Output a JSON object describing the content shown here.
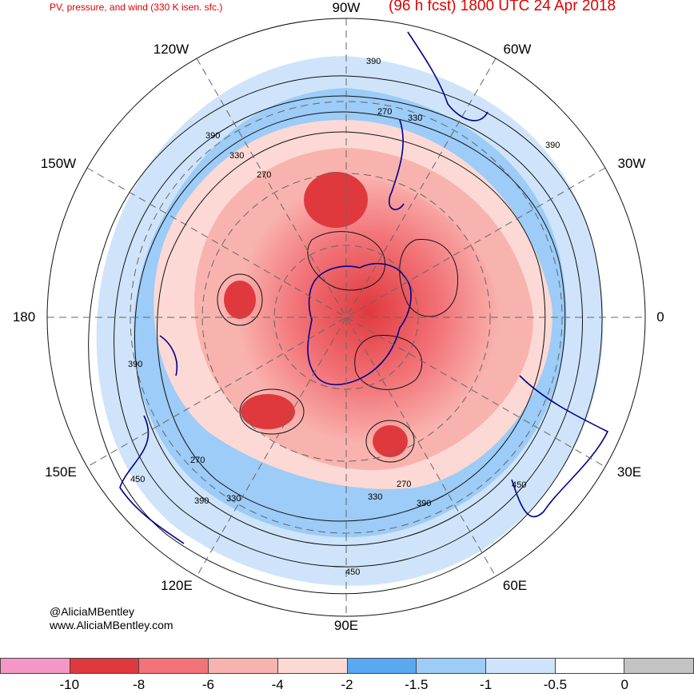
{
  "header": {
    "left_title": "PV, pressure, and wind (330 K isen. sfc.)",
    "right_title": "(96 h fcst) 1800 UTC 24 Apr 2018"
  },
  "longitude_labels": {
    "lon_90w": "90W",
    "lon_60w": "60W",
    "lon_30w": "30W",
    "lon_0": "0",
    "lon_30e": "30E",
    "lon_60e": "60E",
    "lon_90e": "90E",
    "lon_120e": "120E",
    "lon_150e": "150E",
    "lon_180": "180",
    "lon_150w": "150W",
    "lon_120w": "120W"
  },
  "contour_labels": {
    "c1": "390",
    "c2": "270",
    "c3": "330",
    "c4": "390",
    "c5": "330",
    "c6": "270",
    "c7": "390",
    "c8": "390",
    "c9": "270",
    "c10": "450",
    "c11": "390",
    "c12": "330",
    "c13": "270",
    "c14": "330",
    "c15": "390",
    "c16": "450",
    "c17": "450"
  },
  "credits": {
    "handle": "@AliciaMBentley",
    "site": "www.AliciaMBentley.com"
  },
  "colorbar": {
    "colors": [
      "#f597c6",
      "#e0393d",
      "#f27378",
      "#f9b3ae",
      "#fcd9d4",
      "#5aa8f0",
      "#9cccf7",
      "#cfe4fa",
      "#ffffff",
      "#c3c3c3"
    ],
    "tick_labels": [
      "-10",
      "-8",
      "-6",
      "-4",
      "-2",
      "-1.5",
      "-1",
      "-0.5",
      "0"
    ]
  }
}
